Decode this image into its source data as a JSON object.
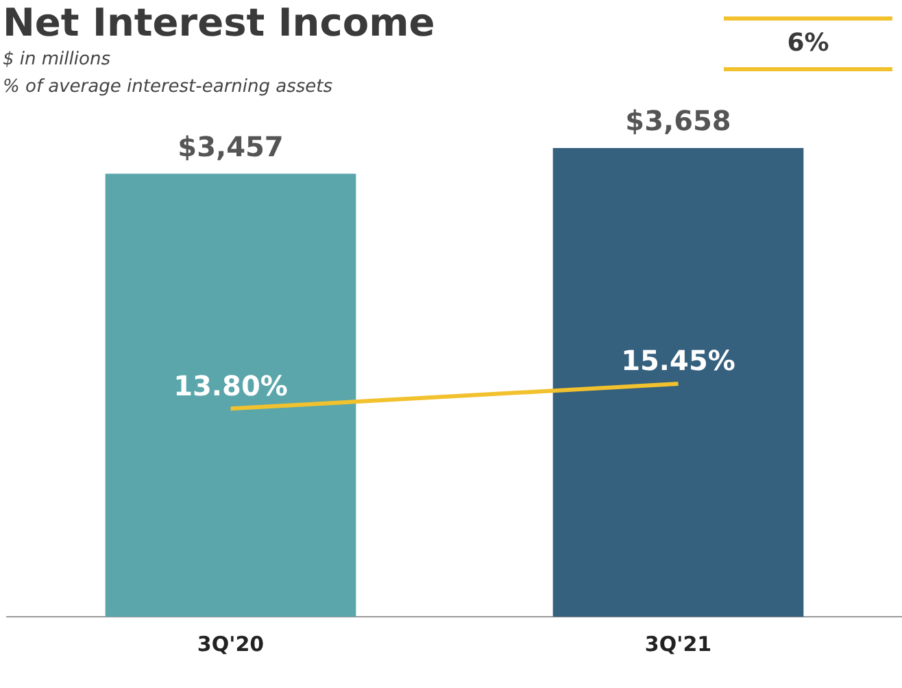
{
  "chart_data": {
    "type": "bar",
    "title": "Net Interest Income",
    "subtitle": "$ in millions",
    "annotations": [
      "% of average interest-earning assets",
      "6%"
    ],
    "categories": [
      "3Q'20",
      "3Q'21"
    ],
    "series": [
      {
        "colors": [
          "#5aa6ab",
          "#35607e"
        ],
        "values": [
          3457,
          3658
        ],
        "value_labels": [
          "$3,457",
          "$3,658"
        ]
      },
      {
        "type": "line",
        "axis": "y2",
        "color": "#f2c12e",
        "values": [
          13.8,
          15.45
        ],
        "value_labels": [
          "13.80%",
          "15.45%"
        ]
      }
    ],
    "grid": false,
    "legend": false,
    "marker": "none",
    "line_style": "solid",
    "tick_labels": "x"
  }
}
